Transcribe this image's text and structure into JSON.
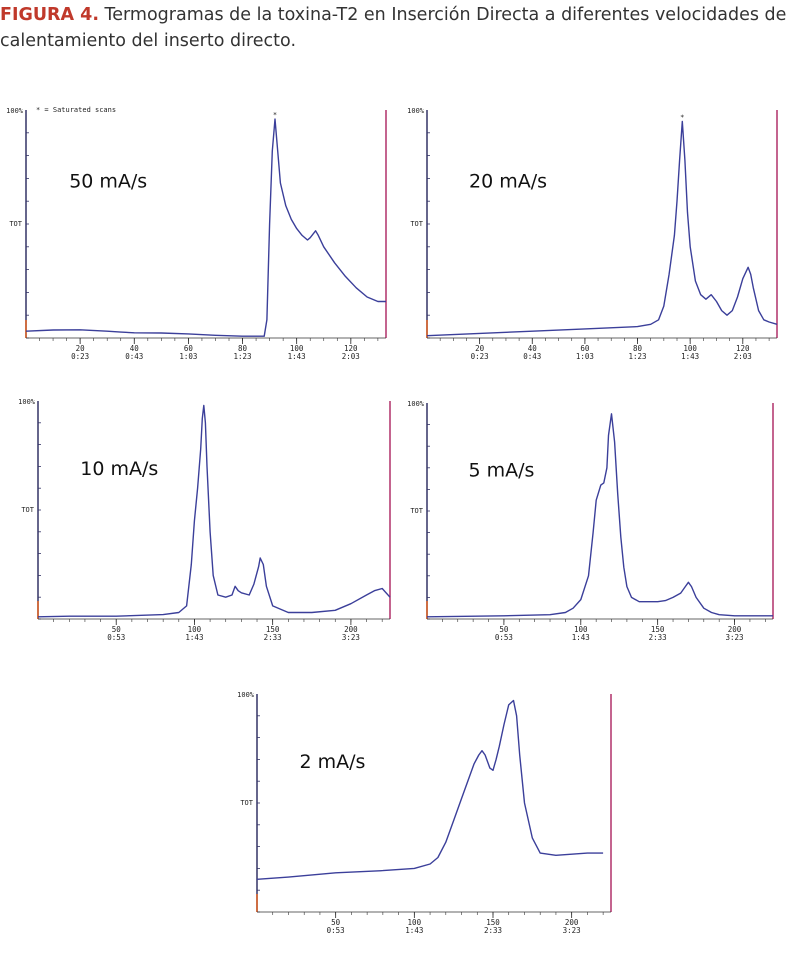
{
  "caption": {
    "label": "FIGURA 4.",
    "text": " Termogramas de la toxina-T2 en Inserción Directa a diferentes velocidades de calentamiento del inserto directo."
  },
  "colors": {
    "trace": "#3b3f9a",
    "left_axis": "#333366",
    "right_axis": "#b0306a",
    "origin_tick": "#e06020",
    "caption_label": "#c0392b"
  },
  "chart_data": [
    {
      "type": "line",
      "id": "chart-50",
      "title": "50 mA/s",
      "ylabel_top": "100%",
      "ylabel_mid": "TOT",
      "note": "* = Saturated scans",
      "peak_marker": "*",
      "xlim": [
        0,
        133
      ],
      "ylim": [
        0,
        100
      ],
      "xticks": [
        20,
        40,
        60,
        80,
        100,
        120
      ],
      "xtick_labels": [
        "20",
        "40",
        "60",
        "80",
        "100",
        "120"
      ],
      "xtime_labels": [
        "0:23",
        "0:43",
        "1:03",
        "1:23",
        "1:43",
        "2:03"
      ],
      "marker_x": 92,
      "x": [
        0,
        10,
        20,
        30,
        35,
        40,
        50,
        60,
        70,
        80,
        88,
        89,
        90,
        91,
        92,
        93,
        94,
        96,
        98,
        100,
        102,
        104,
        105,
        107,
        108,
        110,
        114,
        118,
        122,
        126,
        130,
        133
      ],
      "y": [
        3,
        3.5,
        3.6,
        3,
        2.6,
        2.3,
        2.2,
        1.8,
        1.2,
        0.8,
        0.8,
        8,
        50,
        82,
        96,
        82,
        68,
        58,
        52,
        48,
        45,
        43,
        44,
        47,
        45,
        40,
        33,
        27,
        22,
        18,
        16,
        16
      ]
    },
    {
      "type": "line",
      "id": "chart-20",
      "title": "20 mA/s",
      "ylabel_top": "100%",
      "ylabel_mid": "TOT",
      "peak_marker": "*",
      "xlim": [
        0,
        133
      ],
      "ylim": [
        0,
        100
      ],
      "xticks": [
        20,
        40,
        60,
        80,
        100,
        120
      ],
      "xtick_labels": [
        "20",
        "40",
        "60",
        "80",
        "100",
        "120"
      ],
      "xtime_labels": [
        "0:23",
        "0:43",
        "1:03",
        "1:23",
        "1:43",
        "2:03"
      ],
      "marker_x": 97,
      "x": [
        0,
        20,
        40,
        60,
        80,
        85,
        88,
        90,
        92,
        94,
        95,
        96,
        97,
        98,
        99,
        100,
        102,
        104,
        106,
        108,
        110,
        112,
        114,
        116,
        118,
        120,
        122,
        123,
        124,
        126,
        128,
        130,
        133
      ],
      "y": [
        1,
        2,
        3,
        4,
        5,
        6,
        8,
        14,
        28,
        45,
        60,
        78,
        95,
        78,
        55,
        40,
        25,
        19,
        17,
        19,
        16,
        12,
        10,
        12,
        18,
        26,
        31,
        28,
        22,
        12,
        8,
        7,
        6
      ]
    },
    {
      "type": "line",
      "id": "chart-10",
      "title": "10 mA/s",
      "ylabel_top": "100%",
      "ylabel_mid": "TOT",
      "xlim": [
        0,
        225
      ],
      "ylim": [
        0,
        100
      ],
      "xticks": [
        50,
        100,
        150,
        200
      ],
      "xtick_labels": [
        "50",
        "100",
        "150",
        "200"
      ],
      "xtime_labels": [
        "0:53",
        "1:43",
        "2:33",
        "3:23"
      ],
      "x": [
        0,
        20,
        50,
        80,
        90,
        95,
        98,
        100,
        102,
        104,
        105,
        106,
        107,
        108,
        110,
        112,
        115,
        120,
        124,
        126,
        128,
        130,
        135,
        138,
        141,
        142,
        144,
        146,
        150,
        160,
        175,
        190,
        200,
        210,
        215,
        220,
        225
      ],
      "y": [
        1,
        1.3,
        1.3,
        2,
        3,
        6,
        25,
        45,
        60,
        78,
        92,
        98,
        90,
        70,
        40,
        20,
        11,
        10,
        11,
        15,
        13,
        12,
        11,
        16,
        24,
        28,
        25,
        15,
        6,
        3,
        3,
        4,
        7,
        11,
        13,
        14,
        10
      ]
    },
    {
      "type": "line",
      "id": "chart-5",
      "title": "5 mA/s",
      "ylabel_top": "100%",
      "ylabel_mid": "TOT",
      "xlim": [
        0,
        225
      ],
      "ylim": [
        0,
        100
      ],
      "xticks": [
        50,
        100,
        150,
        200
      ],
      "xtick_labels": [
        "50",
        "100",
        "150",
        "200"
      ],
      "xtime_labels": [
        "0:53",
        "1:43",
        "2:33",
        "3:23"
      ],
      "x": [
        0,
        50,
        80,
        90,
        95,
        100,
        105,
        108,
        110,
        113,
        115,
        117,
        118,
        120,
        122,
        124,
        126,
        128,
        130,
        133,
        138,
        145,
        150,
        155,
        160,
        165,
        168,
        170,
        172,
        175,
        180,
        185,
        190,
        200,
        210,
        225
      ],
      "y": [
        1,
        1.5,
        2,
        3,
        5,
        9,
        20,
        40,
        55,
        62,
        63,
        70,
        85,
        95,
        82,
        58,
        38,
        24,
        15,
        10,
        8,
        8,
        8,
        8.5,
        10,
        12,
        15,
        17,
        15,
        10,
        5,
        3,
        2,
        1.5,
        1.5,
        1.5
      ]
    },
    {
      "type": "line",
      "id": "chart-2",
      "title": "2 mA/s",
      "ylabel_top": "100%",
      "ylabel_mid": "TOT",
      "xlim": [
        0,
        225
      ],
      "ylim": [
        0,
        100
      ],
      "xticks": [
        50,
        100,
        150,
        200
      ],
      "xtick_labels": [
        "50",
        "100",
        "150",
        "200"
      ],
      "xtime_labels": [
        "0:53",
        "1:43",
        "2:33",
        "3:23"
      ],
      "x": [
        0,
        20,
        50,
        80,
        100,
        110,
        115,
        120,
        125,
        130,
        135,
        138,
        141,
        143,
        145,
        148,
        150,
        152,
        154,
        157,
        160,
        163,
        165,
        167,
        170,
        175,
        180,
        190,
        200,
        210,
        220
      ],
      "y": [
        15,
        16,
        18,
        19,
        20,
        22,
        25,
        32,
        42,
        52,
        62,
        68,
        72,
        74,
        72,
        66,
        65,
        70,
        76,
        86,
        95,
        97,
        90,
        72,
        50,
        34,
        27,
        26,
        26.5,
        27,
        27
      ]
    }
  ]
}
